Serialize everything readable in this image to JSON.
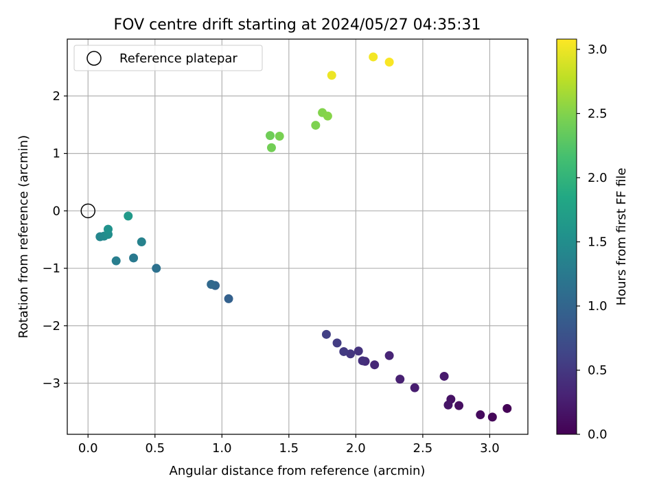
{
  "chart_data": {
    "type": "scatter",
    "title": "FOV centre drift starting at 2024/05/27 04:35:31",
    "xlabel": "Angular distance from reference (arcmin)",
    "ylabel": "Rotation from reference (arcmin)",
    "xlim": [
      -0.155,
      3.285
    ],
    "ylim": [
      -3.89,
      2.99
    ],
    "xticks": [
      0.0,
      0.5,
      1.0,
      1.5,
      2.0,
      2.5,
      3.0
    ],
    "xtick_labels": [
      "0.0",
      "0.5",
      "1.0",
      "1.5",
      "2.0",
      "2.5",
      "3.0"
    ],
    "yticks": [
      -3,
      -2,
      -1,
      0,
      1,
      2
    ],
    "ytick_labels": [
      "−3",
      "−2",
      "−1",
      "0",
      "1",
      "2"
    ],
    "grid": true,
    "legend": {
      "label": "Reference platepar",
      "position": "top-left"
    },
    "reference_point": {
      "x": 0.0,
      "y": 0.0
    },
    "colorbar": {
      "label": "Hours from first FF file",
      "colormap": "viridis",
      "range": [
        0.0,
        3.08
      ],
      "ticks": [
        0.0,
        0.5,
        1.0,
        1.5,
        2.0,
        2.5,
        3.0
      ],
      "tick_labels": [
        "0.0",
        "0.5",
        "1.0",
        "1.5",
        "2.0",
        "2.5",
        "3.0"
      ]
    },
    "points": [
      {
        "x": 3.13,
        "y": -3.44,
        "c": 0.02
      },
      {
        "x": 3.02,
        "y": -3.59,
        "c": 0.05
      },
      {
        "x": 2.93,
        "y": -3.55,
        "c": 0.08
      },
      {
        "x": 2.77,
        "y": -3.39,
        "c": 0.12
      },
      {
        "x": 2.71,
        "y": -3.28,
        "c": 0.15
      },
      {
        "x": 2.69,
        "y": -3.38,
        "c": 0.18
      },
      {
        "x": 2.66,
        "y": -2.88,
        "c": 0.22
      },
      {
        "x": 2.44,
        "y": -3.08,
        "c": 0.25
      },
      {
        "x": 2.33,
        "y": -2.93,
        "c": 0.28
      },
      {
        "x": 2.25,
        "y": -2.52,
        "c": 0.32
      },
      {
        "x": 2.14,
        "y": -2.68,
        "c": 0.35
      },
      {
        "x": 2.07,
        "y": -2.62,
        "c": 0.38
      },
      {
        "x": 2.05,
        "y": -2.61,
        "c": 0.42
      },
      {
        "x": 2.02,
        "y": -2.44,
        "c": 0.45
      },
      {
        "x": 1.96,
        "y": -2.49,
        "c": 0.48
      },
      {
        "x": 1.91,
        "y": -2.45,
        "c": 0.52
      },
      {
        "x": 1.86,
        "y": -2.3,
        "c": 0.55
      },
      {
        "x": 1.78,
        "y": -2.15,
        "c": 0.58
      },
      {
        "x": 1.05,
        "y": -1.53,
        "c": 0.95
      },
      {
        "x": 0.95,
        "y": -1.3,
        "c": 1.0
      },
      {
        "x": 0.92,
        "y": -1.28,
        "c": 1.05
      },
      {
        "x": 0.51,
        "y": -1.0,
        "c": 1.15
      },
      {
        "x": 0.34,
        "y": -0.82,
        "c": 1.25
      },
      {
        "x": 0.21,
        "y": -0.87,
        "c": 1.3
      },
      {
        "x": 0.4,
        "y": -0.54,
        "c": 1.35
      },
      {
        "x": 0.09,
        "y": -0.45,
        "c": 1.4
      },
      {
        "x": 0.12,
        "y": -0.44,
        "c": 1.45
      },
      {
        "x": 0.15,
        "y": -0.41,
        "c": 1.5
      },
      {
        "x": 0.15,
        "y": -0.32,
        "c": 1.55
      },
      {
        "x": 0.3,
        "y": -0.09,
        "c": 1.65
      },
      {
        "x": 1.36,
        "y": 1.31,
        "c": 2.4
      },
      {
        "x": 1.37,
        "y": 1.1,
        "c": 2.42
      },
      {
        "x": 1.43,
        "y": 1.3,
        "c": 2.45
      },
      {
        "x": 1.7,
        "y": 1.49,
        "c": 2.48
      },
      {
        "x": 1.75,
        "y": 1.71,
        "c": 2.5
      },
      {
        "x": 1.79,
        "y": 1.65,
        "c": 2.52
      },
      {
        "x": 1.82,
        "y": 2.36,
        "c": 3.0
      },
      {
        "x": 2.13,
        "y": 2.68,
        "c": 3.03
      },
      {
        "x": 2.25,
        "y": 2.59,
        "c": 3.06
      }
    ]
  }
}
